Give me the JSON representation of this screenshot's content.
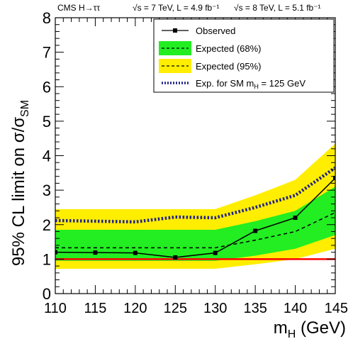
{
  "chart_data": {
    "type": "line",
    "title_left": "CMS H→ττ",
    "title_right_a": "√s = 7 TeV, L = 4.9 fb⁻¹",
    "title_right_b": "√s = 8 TeV, L = 5.1 fb⁻¹",
    "xlabel": "m_H (GeV)",
    "ylabel": "95% CL limit on σ/σ_SM",
    "xlim": [
      110,
      145
    ],
    "ylim": [
      0,
      8
    ],
    "grid": false,
    "legend_position": "top-right",
    "x_ticks": [
      110,
      115,
      120,
      125,
      130,
      135,
      140,
      145
    ],
    "y_ticks": [
      0,
      1,
      2,
      3,
      4,
      5,
      6,
      7,
      8
    ],
    "x": [
      110,
      115,
      120,
      125,
      130,
      135,
      140,
      145
    ],
    "observed": {
      "name": "Observed",
      "values": [
        1.2,
        1.19,
        1.18,
        1.05,
        1.18,
        1.82,
        2.2,
        3.35
      ]
    },
    "expected": {
      "name": "Expected (68%)",
      "values": [
        1.33,
        1.33,
        1.33,
        1.33,
        1.33,
        1.55,
        1.8,
        2.35
      ]
    },
    "band68": {
      "name": "Expected (68%)",
      "low": [
        0.95,
        0.95,
        0.95,
        0.95,
        0.95,
        1.1,
        1.3,
        1.7
      ],
      "high": [
        1.85,
        1.85,
        1.85,
        1.85,
        1.85,
        2.1,
        2.4,
        3.1
      ]
    },
    "band95": {
      "name": "Expected (95%)",
      "low": [
        0.72,
        0.72,
        0.72,
        0.72,
        0.72,
        0.85,
        1.0,
        1.3
      ],
      "high": [
        2.45,
        2.45,
        2.45,
        2.45,
        2.45,
        2.85,
        3.3,
        4.35
      ]
    },
    "sm125": {
      "name": "Exp. for SM m_H = 125 GeV",
      "values": [
        2.12,
        2.1,
        2.08,
        2.22,
        2.2,
        2.5,
        2.85,
        3.65
      ]
    },
    "reference_line": 1,
    "colors": {
      "band68": "#22ee22",
      "band95": "#ffee00",
      "observed": "#000000",
      "expected": "#000000",
      "sm125": "#222288",
      "reference": "#ff0000"
    }
  },
  "legend": [
    {
      "label": "Observed"
    },
    {
      "label": "Expected (68%)"
    },
    {
      "label": "Expected (95%)"
    },
    {
      "label": "Exp. for SM m",
      "sub": "H",
      "rest": " = 125 GeV"
    }
  ],
  "labels": {
    "xlabel_main": "m",
    "xlabel_sub": "H",
    "xlabel_rest": " (GeV)",
    "ylabel_main": "95% CL limit on σ/σ",
    "ylabel_sub": "SM"
  }
}
